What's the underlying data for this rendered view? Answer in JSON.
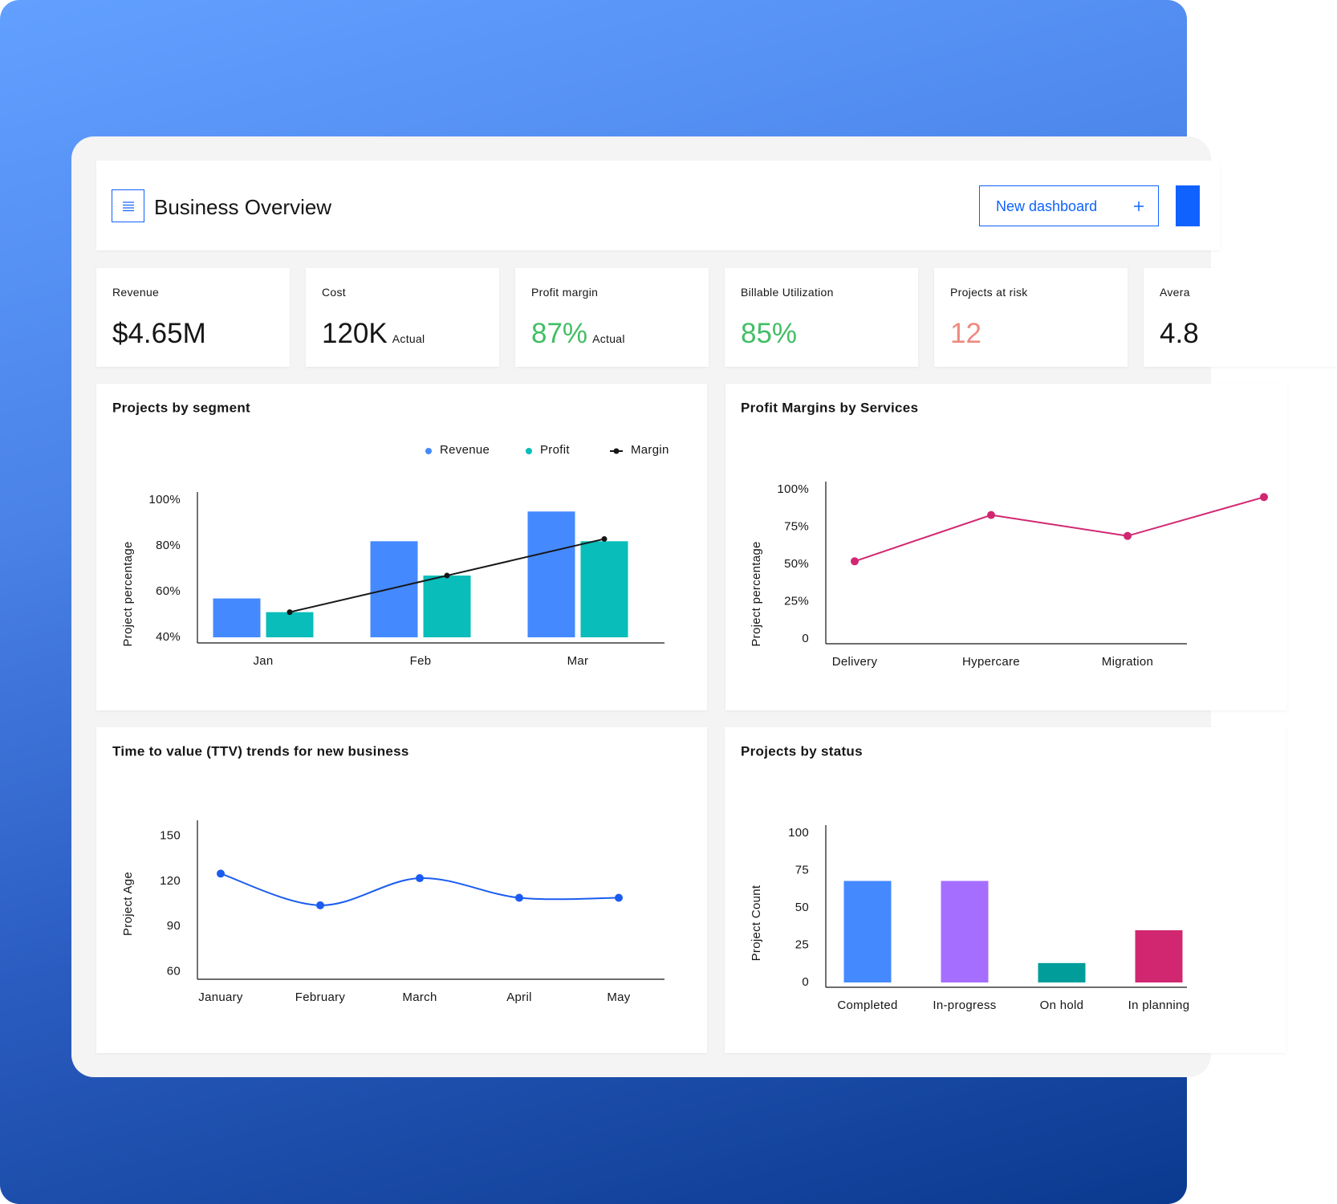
{
  "header": {
    "title": "Business Overview",
    "button": "New dashboard"
  },
  "kpis": [
    {
      "label": "Revenue",
      "value": "$4.65M",
      "color": "#161616"
    },
    {
      "label": "Cost",
      "value": "120K",
      "note": "Actual",
      "color": "#161616"
    },
    {
      "label": "Profit margin",
      "value": "87%",
      "note": "Actual",
      "color": "#42be65"
    },
    {
      "label": "Billable Utilization",
      "value": "85%",
      "color": "#42be65"
    },
    {
      "label": "Projects at risk",
      "value": "12",
      "color": "#ee8a80"
    },
    {
      "label": "Avera",
      "value": "4.8",
      "color": "#161616"
    }
  ],
  "chart_data": [
    {
      "type": "bar",
      "title": "Projects by segment",
      "ylabel": "Project percentage",
      "categories": [
        "Jan",
        "Feb",
        "Mar"
      ],
      "series": [
        {
          "name": "Revenue",
          "color": "#4589ff",
          "values": [
            57,
            82,
            95
          ]
        },
        {
          "name": "Profit",
          "color": "#08bdba",
          "values": [
            51,
            67,
            82
          ]
        },
        {
          "name": "Margin",
          "color": "#161616",
          "type": "line",
          "values": [
            51,
            67,
            83
          ]
        }
      ],
      "ylim": [
        40,
        100
      ],
      "yticks": [
        {
          "value": 40,
          "label": "40%"
        },
        {
          "value": 60,
          "label": "60%"
        },
        {
          "value": 80,
          "label": "80%"
        },
        {
          "value": 100,
          "label": "100%"
        }
      ],
      "legend": "top-right"
    },
    {
      "type": "line",
      "title": "Profit Margins by Services",
      "ylabel": "Project percentage",
      "categories": [
        "Delivery",
        "Hypercare",
        "Migration",
        null
      ],
      "values": [
        52,
        83,
        69,
        95
      ],
      "color": "#d12771",
      "ylim": [
        0,
        100
      ],
      "yticks": [
        0,
        {
          "value": 25,
          "label": "25%"
        },
        {
          "value": 50,
          "label": "50%"
        },
        {
          "value": 75,
          "label": "75%"
        },
        {
          "value": 100,
          "label": "100%"
        }
      ]
    },
    {
      "type": "line",
      "title": "Time to value (TTV) trends for new business",
      "ylabel": "Project Age",
      "categories": [
        "January",
        "February",
        "March",
        "April",
        "May"
      ],
      "values": [
        125,
        104,
        122,
        109,
        109
      ],
      "color": "#1a5cf0",
      "smooth": true,
      "ylim": [
        55,
        155
      ],
      "yticks": [
        60,
        90,
        120,
        150
      ]
    },
    {
      "type": "bar",
      "title": "Projects by status",
      "ylabel": "Project Count",
      "categories": [
        "Completed",
        "In-progress",
        "On hold",
        "In planning"
      ],
      "values": [
        68,
        68,
        13,
        35
      ],
      "colors": [
        "#4589ff",
        "#a56eff",
        "#009d9a",
        "#d12771"
      ],
      "ylim": [
        0,
        100
      ],
      "yticks": [
        0,
        25,
        50,
        75,
        100
      ]
    }
  ]
}
